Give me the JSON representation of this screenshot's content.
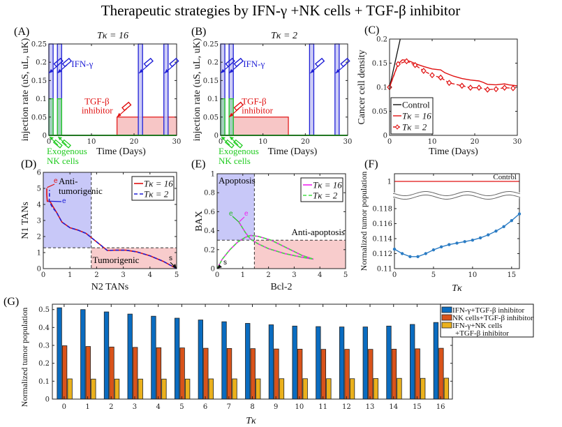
{
  "figure_title": "Therapeutic strategies by IFN-γ +NK cells + TGF-β inhibitor",
  "colors": {
    "ifn": "#1f1fd6",
    "ifn_fill": "#c4c4f4",
    "nk": "#22cc22",
    "nk_fill": "#9ccfb4",
    "tgf": "#e01010",
    "tgf_fill": "#f7c6c6",
    "blue_bar": "#0a6cc0",
    "orange_bar": "#d9531a",
    "yellow_bar": "#ebb11c",
    "curve_f": "#2b7cc4",
    "magenta": "#ee22ee",
    "green": "#44dd44",
    "anti_region": "#c8c8f8",
    "tumor_region": "#f8cccc"
  },
  "chart_data": [
    {
      "id": "A",
      "panel_label": "(A)",
      "type": "bar",
      "title": "Tκ = 16",
      "xlabel": "Time (Days)",
      "ylabel": "injection rate (uS, uL, uK)",
      "xlim": [
        0,
        30
      ],
      "ylim": [
        0,
        0.25
      ],
      "xticks": [
        "0",
        "10",
        "20",
        "30"
      ],
      "yticks": [
        "0",
        "0.05",
        "0.1",
        "0.15",
        "0.2",
        "0.25"
      ],
      "ifn_pulses": [
        [
          0,
          1
        ],
        [
          2,
          3
        ],
        [
          21,
          22
        ],
        [
          27,
          28
        ]
      ],
      "ifn_height": 0.25,
      "nk_pulses": [
        [
          0,
          1
        ],
        [
          2,
          3
        ]
      ],
      "nk_height": 0.1,
      "tgf_interval": [
        16,
        30
      ],
      "tgf_height": 0.05,
      "annotations": {
        "ifn": "IFN-γ",
        "tgf_line1": "TGF-β",
        "tgf_line2": "inhibitor",
        "nk_line1": "Exogenous",
        "nk_line2": "NK cells"
      }
    },
    {
      "id": "B",
      "panel_label": "(B)",
      "type": "bar",
      "title": "Tκ = 2",
      "xlabel": "Time (Days)",
      "ylabel": "injection rate (uS, uL, uK)",
      "xlim": [
        0,
        30
      ],
      "ylim": [
        0,
        0.25
      ],
      "xticks": [
        "0",
        "10",
        "20",
        "30"
      ],
      "yticks": [
        "0",
        "0.05",
        "0.1",
        "0.15",
        "0.2",
        "0.25"
      ],
      "ifn_pulses": [
        [
          0,
          1
        ],
        [
          2,
          3
        ],
        [
          21,
          22
        ],
        [
          27,
          28
        ]
      ],
      "ifn_height": 0.25,
      "nk_pulses": [
        [
          0,
          1
        ],
        [
          2,
          3
        ]
      ],
      "nk_height": 0.1,
      "tgf_interval": [
        2,
        16
      ],
      "tgf_height": 0.05,
      "annotations": {
        "ifn": "IFN-γ",
        "tgf_line1": "TGF-β",
        "tgf_line2": "inhibitor",
        "nk_line1": "Exogenous",
        "nk_line2": "NK cells"
      }
    },
    {
      "id": "C",
      "panel_label": "(C)",
      "type": "line",
      "xlabel": "Time (Days)",
      "ylabel": "Cancer cell density",
      "xlim": [
        0,
        30
      ],
      "ylim": [
        0,
        0.2
      ],
      "xticks": [
        "0",
        "10",
        "20",
        "30"
      ],
      "yticks": [
        "0",
        "0.05",
        "0.1",
        "0.15",
        "0.2"
      ],
      "legend": [
        "Control",
        "Tκ = 16",
        "Tκ = 2"
      ],
      "legend_position": "bottom-left",
      "series": [
        {
          "name": "Control",
          "x": [
            0,
            1,
            2,
            2.5
          ],
          "y": [
            0.1,
            0.14,
            0.18,
            0.2
          ]
        },
        {
          "name": "Tκ = 16",
          "x": [
            0,
            1,
            2,
            3,
            4,
            5,
            6,
            8,
            10,
            12,
            13,
            15,
            17,
            19,
            21,
            22,
            23,
            25,
            27,
            28,
            30
          ],
          "y": [
            0.1,
            0.125,
            0.148,
            0.157,
            0.156,
            0.153,
            0.149,
            0.143,
            0.138,
            0.136,
            0.13,
            0.123,
            0.118,
            0.115,
            0.113,
            0.11,
            0.106,
            0.105,
            0.107,
            0.105,
            0.103
          ]
        },
        {
          "name": "Tκ = 2",
          "x": [
            0,
            2,
            4,
            6,
            8,
            10,
            12,
            14,
            17,
            19,
            21,
            23,
            25,
            27,
            29
          ],
          "y": [
            0.1,
            0.148,
            0.154,
            0.146,
            0.134,
            0.125,
            0.12,
            0.109,
            0.103,
            0.099,
            0.099,
            0.095,
            0.096,
            0.099,
            0.098
          ]
        }
      ]
    },
    {
      "id": "D",
      "panel_label": "(D)",
      "type": "line",
      "xlabel": "N2 TANs",
      "ylabel": "N1 TANs",
      "xlim": [
        0,
        5
      ],
      "ylim": [
        0,
        6
      ],
      "xticks": [
        "0",
        "1",
        "2",
        "3",
        "4",
        "5"
      ],
      "yticks": [
        "0",
        "1",
        "2",
        "3",
        "4",
        "5",
        "6"
      ],
      "thresholds": {
        "x": 1.8,
        "y": 1.3
      },
      "regions": [
        "Anti-tumorigenic",
        "Tumorigenic"
      ],
      "legend": [
        "Tκ = 16",
        "Tκ = 2"
      ],
      "legend_position": "top-right",
      "markers": {
        "start": "s",
        "end": "e"
      },
      "series": [
        {
          "name": "Tκ = 16",
          "x": [
            5,
            4.5,
            4,
            3.5,
            3.1,
            2.7,
            2.4,
            2.2,
            1.9,
            1.6,
            1.3,
            1,
            0.7,
            0.5,
            0.35,
            0.25,
            0.15,
            0.13,
            0.13
          ],
          "y": [
            0,
            0.45,
            0.8,
            1.05,
            1.15,
            1.15,
            1.13,
            1.4,
            1.8,
            2.2,
            2.4,
            2.55,
            2.9,
            3.5,
            3.9,
            4.2,
            4.2,
            4.6,
            5.0
          ]
        },
        {
          "name": "Tκ = 2",
          "x": [
            5,
            4.5,
            4,
            3.5,
            3.1,
            2.7,
            2.4,
            2.2,
            1.9,
            1.6,
            1.3,
            1,
            0.7,
            0.5,
            0.35,
            0.25,
            0.22,
            0.23,
            0.23
          ],
          "y": [
            0,
            0.45,
            0.8,
            1.05,
            1.15,
            1.15,
            1.13,
            1.4,
            1.8,
            2.2,
            2.4,
            2.55,
            2.9,
            3.5,
            3.8,
            4.1,
            4.2,
            4.5,
            4.9
          ]
        }
      ]
    },
    {
      "id": "E",
      "panel_label": "(E)",
      "type": "line",
      "xlabel": "Bcl-2",
      "ylabel": "BAX",
      "xlim": [
        0,
        5
      ],
      "ylim": [
        0,
        1
      ],
      "xticks": [
        "0",
        "1",
        "2",
        "3",
        "4",
        "5"
      ],
      "yticks": [
        "0",
        "0.2",
        "0.4",
        "0.6",
        "0.8",
        "1"
      ],
      "thresholds": {
        "x": 1.45,
        "y": 0.3
      },
      "regions": [
        "Apoptosis",
        "Anti-apoptosis"
      ],
      "legend": [
        "Tκ = 16",
        "Tκ = 2"
      ],
      "legend_position": "top-right",
      "markers": {
        "start": "s",
        "end": "e"
      },
      "series": [
        {
          "name": "Tκ = 16",
          "x": [
            0,
            0.2,
            0.5,
            0.8,
            1.1,
            1.3,
            1.6,
            2.1,
            2.7,
            3.3,
            3.75,
            3.3,
            2.6,
            2.0,
            1.6,
            1.3,
            1.1,
            0.85
          ],
          "y": [
            0,
            0.1,
            0.2,
            0.28,
            0.33,
            0.35,
            0.34,
            0.3,
            0.22,
            0.14,
            0.1,
            0.12,
            0.16,
            0.21,
            0.26,
            0.31,
            0.38,
            0.49
          ]
        },
        {
          "name": "Tκ = 2",
          "x": [
            0,
            0.2,
            0.5,
            0.8,
            1.1,
            1.3,
            1.6,
            2.1,
            2.7,
            3.3,
            3.75,
            3.3,
            2.6,
            2.0,
            1.6,
            1.3,
            1.1,
            0.85
          ],
          "y": [
            0,
            0.1,
            0.2,
            0.28,
            0.33,
            0.35,
            0.34,
            0.3,
            0.22,
            0.14,
            0.1,
            0.12,
            0.16,
            0.21,
            0.26,
            0.31,
            0.38,
            0.49
          ]
        }
      ]
    },
    {
      "id": "F",
      "panel_label": "(F)",
      "type": "line",
      "xlabel": "Tκ",
      "ylabel": "Normalized tumor population",
      "xlim": [
        0,
        16
      ],
      "ylim": [
        0.11,
        0.119
      ],
      "broken_axis_upper": 1,
      "xticks": [
        "0",
        "5",
        "10",
        "15"
      ],
      "yticks": [
        "0.11",
        "0.112",
        "0.114",
        "0.116",
        "0.118",
        "1"
      ],
      "control_label": "Control",
      "control_value": 1,
      "x": [
        0,
        1,
        2,
        3,
        4,
        5,
        6,
        7,
        8,
        9,
        10,
        11,
        12,
        13,
        14,
        15,
        16
      ],
      "y": [
        0.1126,
        0.112,
        0.1116,
        0.1116,
        0.112,
        0.1125,
        0.1129,
        0.1132,
        0.1134,
        0.1136,
        0.1138,
        0.1141,
        0.1145,
        0.115,
        0.1156,
        0.1164,
        0.1173
      ]
    },
    {
      "id": "G",
      "panel_label": "(G)",
      "type": "bar",
      "xlabel": "Tκ",
      "ylabel": "Normalized tumor population",
      "ylim": [
        0,
        0.53
      ],
      "yticks": [
        "0",
        "0.1",
        "0.2",
        "0.3",
        "0.4",
        "0.5"
      ],
      "categories": [
        "0",
        "1",
        "2",
        "3",
        "4",
        "5",
        "6",
        "7",
        "8",
        "9",
        "10",
        "11",
        "12",
        "13",
        "14",
        "15",
        "16"
      ],
      "legend_position": "top-right",
      "series": [
        {
          "name": "IFN-γ+TGF-β inhibitor",
          "values": [
            0.51,
            0.5,
            0.487,
            0.475,
            0.463,
            0.452,
            0.442,
            0.432,
            0.423,
            0.415,
            0.408,
            0.405,
            0.403,
            0.403,
            0.408,
            0.417,
            0.428
          ]
        },
        {
          "name": "NK cells+TGF-β inhibitor",
          "values": [
            0.298,
            0.294,
            0.291,
            0.289,
            0.287,
            0.286,
            0.284,
            0.283,
            0.282,
            0.28,
            0.279,
            0.278,
            0.278,
            0.278,
            0.279,
            0.281,
            0.284
          ]
        },
        {
          "name": "IFN-γ+NK cells +TGF-β inhibitor",
          "values": [
            0.113,
            0.112,
            0.112,
            0.112,
            0.112,
            0.112,
            0.113,
            0.113,
            0.113,
            0.114,
            0.114,
            0.114,
            0.114,
            0.115,
            0.116,
            0.116,
            0.117
          ]
        }
      ],
      "legend_lines": [
        "IFN-γ+TGF-β inhibitor",
        "NK cells+TGF-β inhibitor",
        "IFN-γ+NK cells",
        "+TGF-β inhibitor"
      ]
    }
  ]
}
